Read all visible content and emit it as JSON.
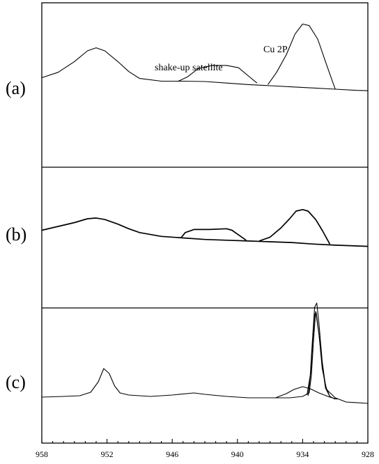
{
  "chart_data": {
    "type": "line",
    "title": "",
    "xlabel": "",
    "ylabel": "",
    "xlim": [
      958,
      928
    ],
    "x_ticks": [
      "958",
      "952",
      "946",
      "940",
      "934",
      "928"
    ],
    "panels": [
      {
        "label": "(a)",
        "annotations": [
          "shake-up satellite",
          "Cu 2P"
        ],
        "series": [
          {
            "points": [
              [
                958,
                0.05
              ],
              [
                956.5,
                0.12
              ],
              [
                955,
                0.26
              ],
              [
                953.8,
                0.4
              ],
              [
                953,
                0.44
              ],
              [
                952.2,
                0.4
              ],
              [
                951,
                0.26
              ],
              [
                950,
                0.13
              ],
              [
                949,
                0.04
              ],
              [
                947,
                0.005
              ],
              [
                945,
                0.005
              ],
              [
                943,
                0.0
              ],
              [
                941,
                -0.02
              ],
              [
                939,
                -0.04
              ],
              [
                937,
                -0.055
              ],
              [
                935,
                -0.07
              ],
              [
                933,
                -0.085
              ],
              [
                931,
                -0.1
              ],
              [
                929,
                -0.115
              ],
              [
                928,
                -0.12
              ]
            ]
          },
          {
            "points": [
              [
                945.5,
                0.0
              ],
              [
                944.6,
                0.06
              ],
              [
                943.6,
                0.17
              ],
              [
                942.3,
                0.21
              ],
              [
                941,
                0.21
              ],
              [
                939.9,
                0.18
              ],
              [
                938.8,
                0.05
              ],
              [
                938.2,
                -0.02
              ]
            ]
          },
          {
            "points": [
              [
                937.2,
                -0.04
              ],
              [
                936.4,
                0.12
              ],
              [
                935.5,
                0.35
              ],
              [
                934.7,
                0.62
              ],
              [
                934,
                0.75
              ],
              [
                933.4,
                0.73
              ],
              [
                932.6,
                0.55
              ],
              [
                931.8,
                0.22
              ],
              [
                931,
                -0.1
              ]
            ]
          }
        ]
      },
      {
        "label": "(b)",
        "annotations": [],
        "series": [
          {
            "points": [
              [
                958,
                0.05
              ],
              [
                956.5,
                0.1
              ],
              [
                955,
                0.15
              ],
              [
                953.8,
                0.2
              ],
              [
                953,
                0.21
              ],
              [
                952.2,
                0.19
              ],
              [
                951,
                0.13
              ],
              [
                950,
                0.07
              ],
              [
                949,
                0.02
              ],
              [
                947,
                -0.03
              ],
              [
                945,
                -0.05
              ],
              [
                943,
                -0.07
              ],
              [
                941,
                -0.08
              ],
              [
                939,
                -0.09
              ],
              [
                937,
                -0.1
              ],
              [
                935,
                -0.11
              ],
              [
                933,
                -0.13
              ],
              [
                931,
                -0.145
              ],
              [
                928,
                -0.16
              ]
            ]
          },
          {
            "points": [
              [
                945.2,
                -0.05
              ],
              [
                944.8,
                0.02
              ],
              [
                944,
                0.06
              ],
              [
                942.6,
                0.06
              ],
              [
                941,
                0.07
              ],
              [
                940.5,
                0.05
              ],
              [
                939.8,
                -0.02
              ],
              [
                939.2,
                -0.08
              ]
            ]
          },
          {
            "points": [
              [
                938,
                -0.09
              ],
              [
                937,
                -0.04
              ],
              [
                936,
                0.08
              ],
              [
                935.2,
                0.2
              ],
              [
                934.6,
                0.3
              ],
              [
                934,
                0.32
              ],
              [
                933.5,
                0.3
              ],
              [
                932.8,
                0.19
              ],
              [
                932.2,
                0.05
              ],
              [
                931.5,
                -0.13
              ]
            ]
          }
        ]
      },
      {
        "label": "(c)",
        "annotations": [],
        "series": [
          {
            "points": [
              [
                958,
                -0.01
              ],
              [
                956,
                0.0
              ],
              [
                954.5,
                0.01
              ],
              [
                953.5,
                0.06
              ],
              [
                952.8,
                0.21
              ],
              [
                952.3,
                0.4
              ],
              [
                951.8,
                0.33
              ],
              [
                951.3,
                0.15
              ],
              [
                950.8,
                0.05
              ],
              [
                950,
                0.02
              ],
              [
                948,
                0.0
              ],
              [
                946,
                0.02
              ],
              [
                944,
                0.05
              ],
              [
                943,
                0.03
              ],
              [
                941,
                0.0
              ],
              [
                939,
                -0.02
              ],
              [
                937,
                -0.02
              ],
              [
                935.2,
                -0.02
              ],
              [
                934,
                0.0
              ],
              [
                933.4,
                0.05
              ],
              [
                933.2,
                0.3
              ],
              [
                933,
                0.8
              ],
              [
                932.8,
                1.22
              ],
              [
                932.5,
                0.9
              ],
              [
                932.2,
                0.4
              ],
              [
                931.8,
                0.1
              ],
              [
                931,
                -0.02
              ],
              [
                930,
                -0.08
              ],
              [
                928,
                -0.1
              ]
            ]
          },
          {
            "points": [
              [
                936.5,
                -0.02
              ],
              [
                935.5,
                0.04
              ],
              [
                934.8,
                0.1
              ],
              [
                934,
                0.14
              ],
              [
                933.3,
                0.11
              ],
              [
                932.5,
                0.05
              ],
              [
                931.5,
                -0.01
              ],
              [
                930.8,
                -0.04
              ]
            ]
          },
          {
            "points": [
              [
                933.6,
                0.02
              ],
              [
                933.3,
                0.3
              ],
              [
                933.1,
                0.8
              ],
              [
                932.9,
                1.28
              ],
              [
                932.7,
                1.34
              ],
              [
                932.5,
                1.05
              ],
              [
                932.2,
                0.5
              ],
              [
                931.9,
                0.15
              ],
              [
                931.5,
                0.0
              ],
              [
                931,
                -0.04
              ]
            ]
          },
          {
            "points": [
              [
                933.5,
                0.01
              ],
              [
                933.25,
                0.35
              ],
              [
                933.05,
                0.85
              ],
              [
                932.9,
                1.18
              ],
              [
                932.75,
                1.2
              ],
              [
                932.5,
                0.9
              ],
              [
                932.2,
                0.45
              ],
              [
                931.9,
                0.12
              ],
              [
                931.5,
                0.0
              ]
            ]
          }
        ]
      }
    ]
  }
}
